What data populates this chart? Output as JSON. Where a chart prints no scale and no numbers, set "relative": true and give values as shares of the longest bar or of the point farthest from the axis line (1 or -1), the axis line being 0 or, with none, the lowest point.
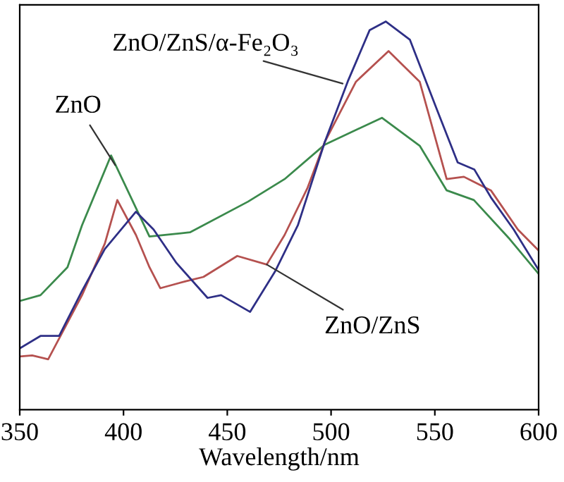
{
  "chart_data": {
    "type": "line",
    "xlabel": "Wavelength/nm",
    "relative": true,
    "xlim": [
      350,
      600
    ],
    "xticks": [
      350,
      400,
      450,
      500,
      550,
      600
    ],
    "grid": false,
    "legend": false,
    "marker": "none",
    "line_style": "solid",
    "tick_labels": "x",
    "series": [
      {
        "color": "#3b8a4c",
        "x": [
          350,
          360,
          373,
          380,
          394,
          412.5,
          432,
          460,
          477.6,
          497,
          524.5,
          542.7,
          555.7,
          568.8,
          586,
          600
        ],
        "values": [
          0.28,
          0.295,
          0.367,
          0.475,
          0.655,
          0.446,
          0.457,
          0.536,
          0.594,
          0.683,
          0.752,
          0.68,
          0.565,
          0.54,
          0.44,
          0.35
        ]
      },
      {
        "color": "#b5514f",
        "x": [
          350,
          356,
          363.7,
          380,
          391,
          397,
          406,
          412.5,
          417.7,
          430,
          438.5,
          454.8,
          469,
          477.6,
          488.7,
          497,
          512,
          527.7,
          542.7,
          555.7,
          564,
          577,
          590,
          600
        ],
        "values": [
          0.137,
          0.14,
          0.13,
          0.295,
          0.428,
          0.54,
          0.45,
          0.367,
          0.313,
          0.331,
          0.342,
          0.396,
          0.374,
          0.45,
          0.572,
          0.69,
          0.845,
          0.924,
          0.845,
          0.594,
          0.6,
          0.565,
          0.464,
          0.41
        ]
      },
      {
        "color": "#2e2f86",
        "x": [
          350,
          360,
          369,
          380,
          391,
          406,
          414.5,
          425.5,
          440.5,
          447,
          461,
          473,
          484,
          497,
          508,
          518.6,
          526.4,
          538,
          551,
          561,
          569,
          577,
          588,
          600
        ],
        "values": [
          0.158,
          0.19,
          0.19,
          0.306,
          0.414,
          0.51,
          0.464,
          0.378,
          0.288,
          0.295,
          0.252,
          0.356,
          0.475,
          0.69,
          0.845,
          0.978,
          1.0,
          0.953,
          0.773,
          0.637,
          0.619,
          0.547,
          0.464,
          0.36
        ]
      }
    ],
    "annotations": [
      {
        "text": "ZnO",
        "x": 396,
        "y": 0.63
      },
      {
        "text": "ZnO/ZnS/α-Fe₂O₃",
        "x": 505.6,
        "y": 0.84
      },
      {
        "text": "ZnO/ZnS",
        "x": 469,
        "y": 0.374
      }
    ]
  }
}
